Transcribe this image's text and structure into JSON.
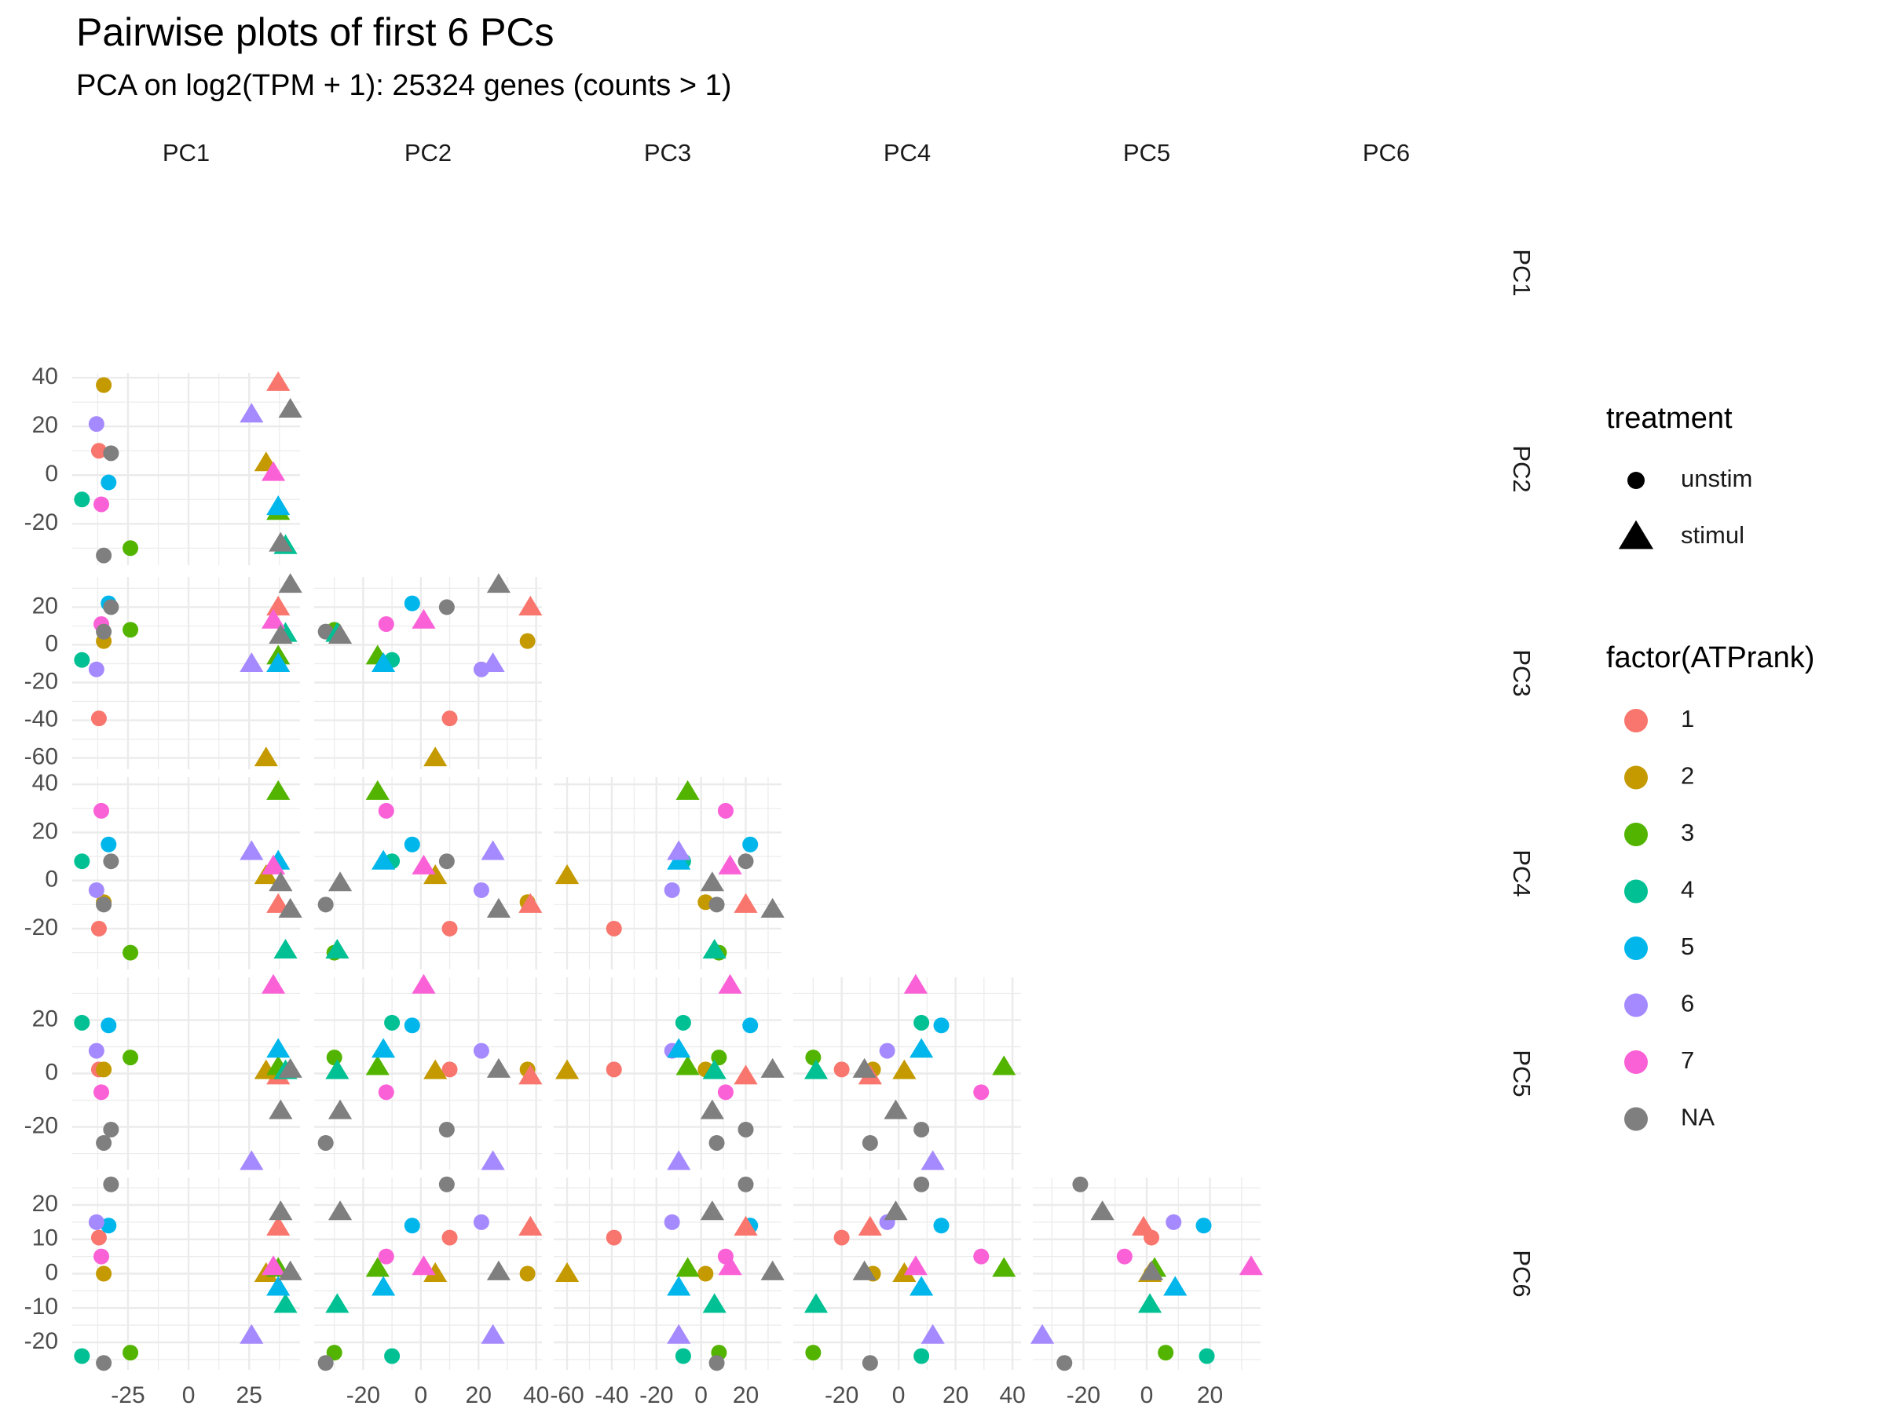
{
  "title": "Pairwise plots of first 6 PCs",
  "subtitle": "PCA on log2(TPM + 1): 25324 genes (counts > 1)",
  "chart_data": {
    "type": "scatter",
    "layout": "pairwise-lower-triangle",
    "variables": [
      "PC1",
      "PC2",
      "PC3",
      "PC4",
      "PC5",
      "PC6"
    ],
    "axis_limits": {
      "PC1": [
        -48,
        46
      ],
      "PC2": [
        -37,
        42
      ],
      "PC3": [
        -66,
        36
      ],
      "PC4": [
        -37,
        43
      ],
      "PC5": [
        -36,
        36
      ],
      "PC6": [
        -28,
        28
      ]
    },
    "axis_ticks": {
      "PC1": [
        -25,
        0,
        25
      ],
      "PC2": [
        -20,
        0,
        20,
        40
      ],
      "PC3": [
        -60,
        -40,
        -20,
        0,
        20
      ],
      "PC4": [
        -20,
        0,
        20,
        40
      ],
      "PC5": [
        -20,
        0,
        20
      ],
      "PC6": [
        -20,
        -10,
        0,
        10,
        20
      ]
    },
    "grid": true,
    "legend_position": "right",
    "treatment_legend": {
      "title": "treatment",
      "items": [
        {
          "label": "unstim",
          "shape": "circle"
        },
        {
          "label": "stimul",
          "shape": "triangle"
        }
      ]
    },
    "color_legend": {
      "title": "factor(ATPrank)",
      "items": [
        {
          "label": "1",
          "color": "#F8766D"
        },
        {
          "label": "2",
          "color": "#C49A00"
        },
        {
          "label": "3",
          "color": "#53B400"
        },
        {
          "label": "4",
          "color": "#00C094"
        },
        {
          "label": "5",
          "color": "#00B6EB"
        },
        {
          "label": "6",
          "color": "#A58AFF"
        },
        {
          "label": "7",
          "color": "#FB61D7"
        },
        {
          "label": "NA",
          "color": "#7F7F7F"
        }
      ]
    },
    "samples": [
      {
        "rank": "1",
        "treatment": "unstim",
        "pcs": [
          -37,
          10,
          -39,
          -20,
          1.5,
          10.5
        ]
      },
      {
        "rank": "2",
        "treatment": "unstim",
        "pcs": [
          -35,
          37,
          2,
          -9,
          1.5,
          0
        ]
      },
      {
        "rank": "3",
        "treatment": "unstim",
        "pcs": [
          -24,
          -30,
          8,
          -30,
          6,
          -23
        ]
      },
      {
        "rank": "4",
        "treatment": "unstim",
        "pcs": [
          -44,
          -10,
          -8,
          8,
          19,
          -24
        ]
      },
      {
        "rank": "5",
        "treatment": "unstim",
        "pcs": [
          -33,
          -3,
          22,
          15,
          18,
          14
        ]
      },
      {
        "rank": "6",
        "treatment": "unstim",
        "pcs": [
          -38,
          21,
          -13,
          -4,
          8.5,
          15
        ]
      },
      {
        "rank": "7",
        "treatment": "unstim",
        "pcs": [
          -36,
          -12,
          11,
          29,
          -7,
          5
        ]
      },
      {
        "rank": "NA",
        "treatment": "unstim",
        "pcs": [
          -32,
          9,
          20,
          8,
          -21,
          26
        ]
      },
      {
        "rank": "NA",
        "treatment": "unstim",
        "pcs": [
          -35,
          -33,
          7,
          -10,
          -26,
          -26
        ]
      },
      {
        "rank": "1",
        "treatment": "stimul",
        "pcs": [
          37,
          38,
          20,
          -10,
          -1,
          13.5
        ]
      },
      {
        "rank": "2",
        "treatment": "stimul",
        "pcs": [
          32,
          5,
          -60,
          2,
          1,
          0
        ]
      },
      {
        "rank": "3",
        "treatment": "stimul",
        "pcs": [
          37,
          -15,
          -6,
          37,
          2.5,
          1.5
        ]
      },
      {
        "rank": "4",
        "treatment": "stimul",
        "pcs": [
          40,
          -29,
          6,
          -29,
          1,
          -9
        ]
      },
      {
        "rank": "5",
        "treatment": "stimul",
        "pcs": [
          37,
          -13,
          -10,
          8,
          9,
          -4
        ]
      },
      {
        "rank": "6",
        "treatment": "stimul",
        "pcs": [
          26,
          25,
          -10,
          12,
          -33,
          -18
        ]
      },
      {
        "rank": "7",
        "treatment": "stimul",
        "pcs": [
          35,
          1,
          13,
          6,
          33,
          2
        ]
      },
      {
        "rank": "NA",
        "treatment": "stimul",
        "pcs": [
          42,
          27,
          32,
          -12,
          1.5,
          0.5
        ]
      },
      {
        "rank": "NA",
        "treatment": "stimul",
        "pcs": [
          38,
          -28,
          5,
          -1,
          -14,
          18
        ]
      }
    ]
  }
}
